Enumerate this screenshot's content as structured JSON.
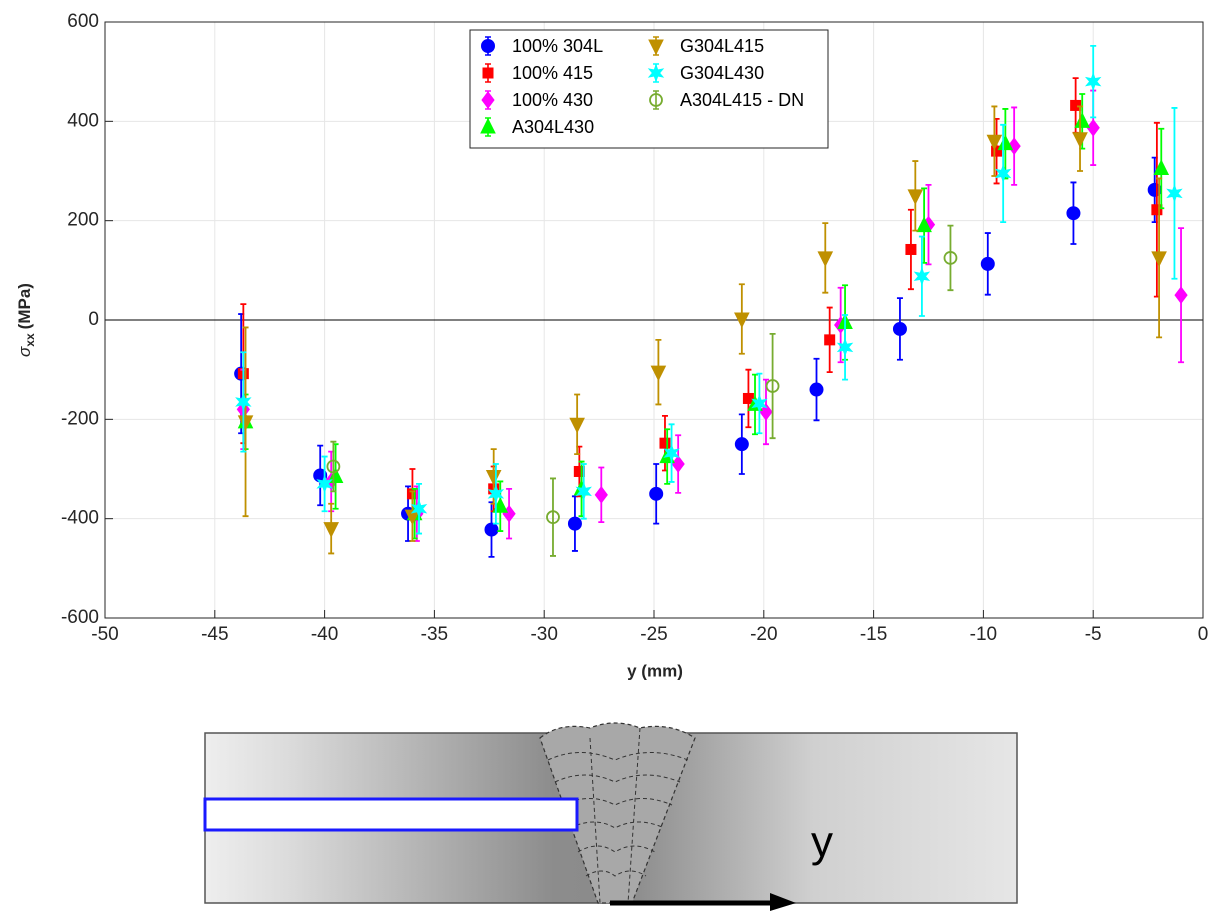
{
  "chart_data": {
    "type": "errorbar-scatter",
    "xlabel": "y (mm)",
    "ylabel": {
      "symbol": "σ",
      "subscript": "xx",
      "unit": "(MPa)"
    },
    "xlim": [
      -50,
      0
    ],
    "xticks": [
      -50,
      -45,
      -40,
      -35,
      -30,
      -25,
      -20,
      -15,
      -10,
      -5,
      0
    ],
    "ylim": [
      -600,
      600
    ],
    "yticks": [
      -600,
      -400,
      -200,
      0,
      200,
      400,
      600
    ],
    "grid": true,
    "legend": "north",
    "series": [
      {
        "name": "100% 304L",
        "color": "#0000ff",
        "marker": "circle",
        "x": [
          -43.8,
          -40.2,
          -36.2,
          -32.4,
          -28.6,
          -24.9,
          -21.0,
          -17.6,
          -13.8,
          -9.8,
          -5.9,
          -2.2
        ],
        "values": [
          -108,
          -313,
          -390,
          -422,
          -410,
          -350,
          -250,
          -140,
          -18,
          113,
          215,
          262
        ],
        "errors": [
          120,
          60,
          55,
          55,
          55,
          60,
          60,
          62,
          62,
          62,
          62,
          65
        ]
      },
      {
        "name": "100% 415",
        "color": "#ff0000",
        "marker": "square",
        "x": [
          -43.7,
          -36.0,
          -32.3,
          -28.4,
          -24.5,
          -20.7,
          -17.0,
          -13.3,
          -9.4,
          -5.8,
          -2.1
        ],
        "values": [
          -108,
          -350,
          -340,
          -305,
          -248,
          -158,
          -40,
          142,
          340,
          432,
          222
        ],
        "errors": [
          140,
          50,
          45,
          50,
          55,
          58,
          65,
          80,
          65,
          55,
          175
        ]
      },
      {
        "name": "100% 430",
        "color": "#ff00ff",
        "marker": "diamond",
        "x": [
          -43.7,
          -39.7,
          -35.8,
          -31.6,
          -27.4,
          -23.9,
          -19.9,
          -16.5,
          -12.5,
          -8.6,
          -5.0,
          -1.0
        ],
        "values": [
          -180,
          -325,
          -390,
          -390,
          -352,
          -290,
          -185,
          -10,
          192,
          350,
          387,
          50
        ],
        "errors": [
          80,
          60,
          55,
          50,
          55,
          58,
          65,
          75,
          80,
          78,
          75,
          135
        ]
      },
      {
        "name": "A304L430",
        "color": "#00ff00",
        "marker": "triangle-up",
        "x": [
          -43.6,
          -39.5,
          -35.9,
          -32.0,
          -28.3,
          -24.4,
          -20.4,
          -16.3,
          -12.7,
          -9.0,
          -5.5,
          -1.9
        ],
        "values": [
          -205,
          -315,
          -390,
          -375,
          -340,
          -275,
          -170,
          -5,
          190,
          355,
          400,
          305
        ],
        "errors": [
          55,
          65,
          50,
          50,
          55,
          55,
          60,
          75,
          75,
          70,
          55,
          80
        ]
      },
      {
        "name": "G304L415",
        "color": "#bf9000",
        "marker": "triangle-down",
        "x": [
          -43.6,
          -39.7,
          -36.0,
          -32.3,
          -28.5,
          -24.8,
          -21.0,
          -17.2,
          -13.1,
          -9.5,
          -5.6,
          -2.0
        ],
        "values": [
          -205,
          -420,
          -395,
          -315,
          -210,
          -105,
          2,
          125,
          250,
          360,
          365,
          125
        ],
        "errors": [
          190,
          50,
          50,
          55,
          60,
          65,
          70,
          70,
          70,
          70,
          65,
          160
        ]
      },
      {
        "name": "G304L430",
        "color": "#00ffff",
        "marker": "star",
        "x": [
          -43.7,
          -40.0,
          -35.7,
          -32.2,
          -28.2,
          -24.2,
          -20.2,
          -16.3,
          -12.8,
          -9.1,
          -5.0,
          -1.3
        ],
        "values": [
          -165,
          -330,
          -380,
          -350,
          -345,
          -268,
          -168,
          -55,
          88,
          295,
          480,
          255
        ],
        "errors": [
          100,
          55,
          50,
          60,
          55,
          58,
          60,
          65,
          80,
          98,
          72,
          172
        ]
      },
      {
        "name": "A304L415 - DN",
        "color": "#77ac30",
        "marker": "open-circle",
        "x": [
          -39.6,
          -29.6,
          -19.6,
          -11.5
        ],
        "values": [
          -295,
          -397,
          -133,
          125
        ],
        "errors": [
          50,
          78,
          105,
          65
        ]
      }
    ]
  },
  "diagram": {
    "axis_label": "y"
  }
}
